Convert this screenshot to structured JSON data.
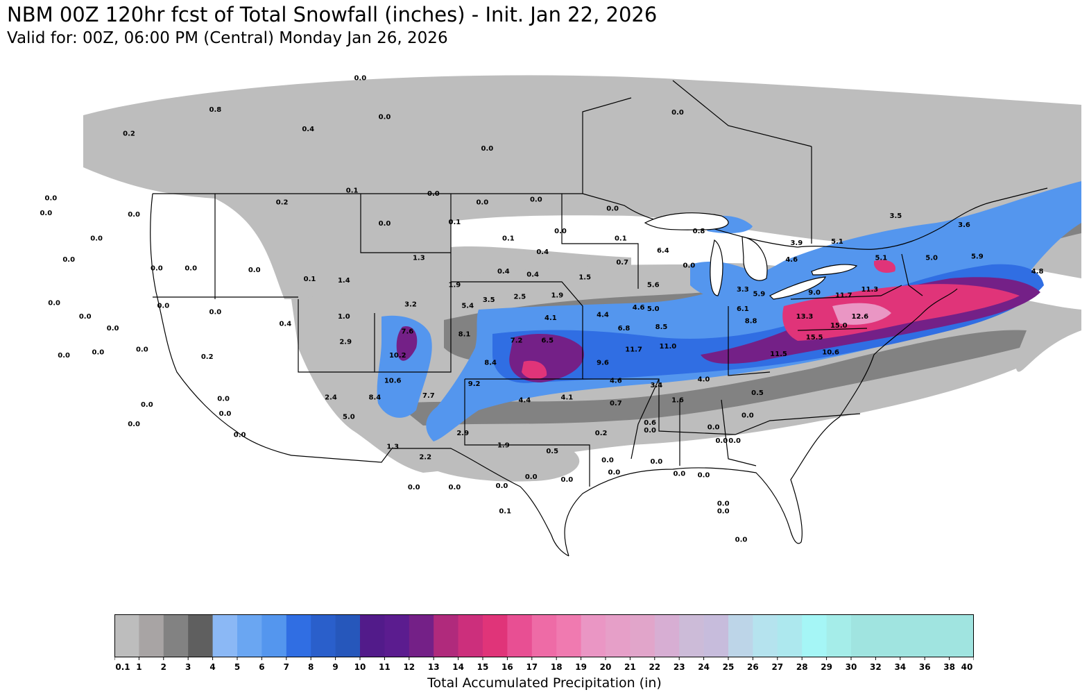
{
  "title": "NBM 00Z 120hr fcst of Total Snowfall (inches) - Init. Jan 22, 2026",
  "subtitle": "Valid for: 00Z, 06:00 PM (Central) Monday Jan 26, 2026",
  "colorbar": {
    "title": "Total Accumulated Precipitation (in)",
    "ticks": [
      "0.1",
      "1",
      "2",
      "3",
      "4",
      "5",
      "6",
      "7",
      "8",
      "9",
      "10",
      "11",
      "12",
      "13",
      "14",
      "15",
      "16",
      "17",
      "18",
      "19",
      "20",
      "21",
      "22",
      "23",
      "24",
      "25",
      "26",
      "27",
      "28",
      "29",
      "30",
      "32",
      "34",
      "36",
      "38",
      "40"
    ],
    "colors": [
      "#bdbdbd",
      "#a8a4a4",
      "#828282",
      "#5f5f5f",
      "#8bb8f5",
      "#6aa6f2",
      "#5496ee",
      "#306ee3",
      "#2a5fcb",
      "#2657bb",
      "#521b8a",
      "#5b1c8f",
      "#742087",
      "#b02a7c",
      "#cc2f7c",
      "#e03479",
      "#e84f93",
      "#ee6ba6",
      "#f07ab0",
      "#ea96c4",
      "#e69fc8",
      "#e1a5ca",
      "#d7aed3",
      "#ccbbd8",
      "#c7bcdc",
      "#bdd5e8",
      "#b5e3ee",
      "#ade8ee",
      "#a5f6f6",
      "#a5ede9",
      "#a0e4e0",
      "#a0e4e0",
      "#a0e4e0",
      "#a0e4e0",
      "#a0e4e0"
    ]
  },
  "map_labels": [
    {
      "t": "0.0",
      "x": -123.3,
      "y": 48.9
    },
    {
      "t": "0.2",
      "x": -118.5,
      "y": 53.2
    },
    {
      "t": "0.8",
      "x": -113.2,
      "y": 54.8
    },
    {
      "t": "0.0",
      "x": -104.3,
      "y": 56.9
    },
    {
      "t": "0.4",
      "x": -107.5,
      "y": 53.5
    },
    {
      "t": "0.0",
      "x": -102.8,
      "y": 54.3
    },
    {
      "t": "0.0",
      "x": -96.5,
      "y": 52.2
    },
    {
      "t": "0.0",
      "x": -84.8,
      "y": 54.6
    },
    {
      "t": "0.0",
      "x": -123.6,
      "y": 47.9
    },
    {
      "t": "0.0",
      "x": -118.2,
      "y": 47.8
    },
    {
      "t": "0.0",
      "x": -120.5,
      "y": 46.2
    },
    {
      "t": "0.1",
      "x": -104.8,
      "y": 49.4
    },
    {
      "t": "0.2",
      "x": -109.1,
      "y": 48.6
    },
    {
      "t": "0.0",
      "x": -99.8,
      "y": 49.2
    },
    {
      "t": "0.0",
      "x": -96.8,
      "y": 48.6
    },
    {
      "t": "0.0",
      "x": -102.8,
      "y": 47.2
    },
    {
      "t": "0.1",
      "x": -98.5,
      "y": 47.3
    },
    {
      "t": "0.0",
      "x": -93.5,
      "y": 48.8
    },
    {
      "t": "0.0",
      "x": -92.0,
      "y": 46.7
    },
    {
      "t": "0.1",
      "x": -95.2,
      "y": 46.2
    },
    {
      "t": "0.4",
      "x": -93.1,
      "y": 45.3
    },
    {
      "t": "0.0",
      "x": -88.8,
      "y": 48.2
    },
    {
      "t": "0.1",
      "x": -88.3,
      "y": 46.2
    },
    {
      "t": "0.8",
      "x": -83.5,
      "y": 46.7
    },
    {
      "t": "0.0",
      "x": -122.2,
      "y": 44.8
    },
    {
      "t": "0.0",
      "x": -116.8,
      "y": 44.2
    },
    {
      "t": "0.0",
      "x": -114.7,
      "y": 44.2
    },
    {
      "t": "0.0",
      "x": -110.8,
      "y": 44.1
    },
    {
      "t": "0.1",
      "x": -107.4,
      "y": 43.5
    },
    {
      "t": "1.4",
      "x": -105.3,
      "y": 43.4
    },
    {
      "t": "1.3",
      "x": -100.7,
      "y": 44.9
    },
    {
      "t": "1.9",
      "x": -98.5,
      "y": 43.1
    },
    {
      "t": "0.4",
      "x": -95.5,
      "y": 44.0
    },
    {
      "t": "0.4",
      "x": -93.7,
      "y": 43.8
    },
    {
      "t": "1.5",
      "x": -90.5,
      "y": 43.6
    },
    {
      "t": "0.7",
      "x": -88.2,
      "y": 44.6
    },
    {
      "t": "6.4",
      "x": -85.7,
      "y": 45.4
    },
    {
      "t": "5.6",
      "x": -86.3,
      "y": 43.1
    },
    {
      "t": "4.6",
      "x": -87.2,
      "y": 41.6
    },
    {
      "t": "0.0",
      "x": -123.1,
      "y": 41.9
    },
    {
      "t": "0.0",
      "x": -121.2,
      "y": 41.0
    },
    {
      "t": "0.0",
      "x": -116.4,
      "y": 41.7
    },
    {
      "t": "0.0",
      "x": -113.2,
      "y": 41.3
    },
    {
      "t": "0.0",
      "x": -119.5,
      "y": 40.2
    },
    {
      "t": "0.0",
      "x": -117.7,
      "y": 38.8
    },
    {
      "t": "0.0",
      "x": -120.4,
      "y": 38.6
    },
    {
      "t": "0.0",
      "x": -122.5,
      "y": 38.4
    },
    {
      "t": "0.2",
      "x": -113.7,
      "y": 38.3
    },
    {
      "t": "0.4",
      "x": -108.9,
      "y": 40.5
    },
    {
      "t": "2.9",
      "x": -105.2,
      "y": 39.3
    },
    {
      "t": "1.0",
      "x": -105.3,
      "y": 41.0
    },
    {
      "t": "3.2",
      "x": -101.2,
      "y": 41.8
    },
    {
      "t": "5.4",
      "x": -97.7,
      "y": 41.7
    },
    {
      "t": "3.5",
      "x": -96.4,
      "y": 42.1
    },
    {
      "t": "2.5",
      "x": -94.5,
      "y": 42.3
    },
    {
      "t": "1.9",
      "x": -92.2,
      "y": 42.4
    },
    {
      "t": "4.1",
      "x": -92.6,
      "y": 40.9
    },
    {
      "t": "4.4",
      "x": -89.4,
      "y": 41.1
    },
    {
      "t": "6.8",
      "x": -88.1,
      "y": 40.2
    },
    {
      "t": "5.0",
      "x": -86.3,
      "y": 41.5
    },
    {
      "t": "8.5",
      "x": -85.8,
      "y": 40.3
    },
    {
      "t": "7.6",
      "x": -101.4,
      "y": 40.0
    },
    {
      "t": "8.1",
      "x": -97.9,
      "y": 39.8
    },
    {
      "t": "7.2",
      "x": -94.7,
      "y": 39.4
    },
    {
      "t": "6.5",
      "x": -92.8,
      "y": 39.4
    },
    {
      "t": "10.2",
      "x": -102.0,
      "y": 38.4
    },
    {
      "t": "8.4",
      "x": -96.3,
      "y": 37.9
    },
    {
      "t": "11.7",
      "x": -87.5,
      "y": 38.8
    },
    {
      "t": "11.0",
      "x": -85.4,
      "y": 39.0
    },
    {
      "t": "9.6",
      "x": -89.4,
      "y": 37.9
    },
    {
      "t": "10.6",
      "x": -102.3,
      "y": 36.7
    },
    {
      "t": "9.2",
      "x": -97.3,
      "y": 36.5
    },
    {
      "t": "4.6",
      "x": -88.6,
      "y": 36.7
    },
    {
      "t": "3.4",
      "x": -86.1,
      "y": 36.4
    },
    {
      "t": "4.0",
      "x": -83.2,
      "y": 36.8
    },
    {
      "t": "8.4",
      "x": -103.4,
      "y": 35.6
    },
    {
      "t": "7.7",
      "x": -100.1,
      "y": 35.7
    },
    {
      "t": "4.4",
      "x": -94.2,
      "y": 35.4
    },
    {
      "t": "4.1",
      "x": -91.6,
      "y": 35.6
    },
    {
      "t": "0.7",
      "x": -88.6,
      "y": 35.2
    },
    {
      "t": "1.6",
      "x": -84.8,
      "y": 35.4
    },
    {
      "t": "0.5",
      "x": -79.9,
      "y": 35.9
    },
    {
      "t": "2.4",
      "x": -106.1,
      "y": 35.6
    },
    {
      "t": "5.0",
      "x": -105.0,
      "y": 34.3
    },
    {
      "t": "0.0",
      "x": -112.7,
      "y": 35.5
    },
    {
      "t": "0.0",
      "x": -112.6,
      "y": 34.5
    },
    {
      "t": "0.0",
      "x": -111.7,
      "y": 33.1
    },
    {
      "t": "0.0",
      "x": -117.4,
      "y": 35.1
    },
    {
      "t": "0.0",
      "x": -118.2,
      "y": 33.8
    },
    {
      "t": "2.9",
      "x": -98.0,
      "y": 33.2
    },
    {
      "t": "1.9",
      "x": -95.5,
      "y": 32.4
    },
    {
      "t": "0.5",
      "x": -92.5,
      "y": 32.0
    },
    {
      "t": "0.2",
      "x": -89.5,
      "y": 33.2
    },
    {
      "t": "0.6",
      "x": -86.5,
      "y": 33.9
    },
    {
      "t": "0.0",
      "x": -86.5,
      "y": 33.4
    },
    {
      "t": "0.0",
      "x": -82.6,
      "y": 33.6
    },
    {
      "t": "0.0",
      "x": -81.3,
      "y": 32.7
    },
    {
      "t": "1.3",
      "x": -102.3,
      "y": 32.3
    },
    {
      "t": "2.2",
      "x": -100.3,
      "y": 31.6
    },
    {
      "t": "0.0",
      "x": -89.1,
      "y": 31.4
    },
    {
      "t": "0.0",
      "x": -86.1,
      "y": 31.3
    },
    {
      "t": "0.0",
      "x": -101.0,
      "y": 29.6
    },
    {
      "t": "0.0",
      "x": -98.5,
      "y": 29.6
    },
    {
      "t": "0.0",
      "x": -95.6,
      "y": 29.7
    },
    {
      "t": "0.0",
      "x": -93.8,
      "y": 30.3
    },
    {
      "t": "0.0",
      "x": -91.6,
      "y": 30.1
    },
    {
      "t": "0.0",
      "x": -88.7,
      "y": 30.6
    },
    {
      "t": "0.0",
      "x": -84.7,
      "y": 30.5
    },
    {
      "t": "0.0",
      "x": -83.2,
      "y": 30.4
    },
    {
      "t": "0.0",
      "x": -82.0,
      "y": 28.5
    },
    {
      "t": "0.0",
      "x": -82.0,
      "y": 28.0
    },
    {
      "t": "0.0",
      "x": -80.9,
      "y": 26.1
    },
    {
      "t": "0.1",
      "x": -95.4,
      "y": 28.0
    },
    {
      "t": "0.0",
      "x": -84.1,
      "y": 44.4
    },
    {
      "t": "3.3",
      "x": -80.8,
      "y": 42.8
    },
    {
      "t": "5.9",
      "x": -79.8,
      "y": 42.5
    },
    {
      "t": "4.6",
      "x": -77.8,
      "y": 44.8
    },
    {
      "t": "6.1",
      "x": -80.8,
      "y": 41.5
    },
    {
      "t": "8.8",
      "x": -80.3,
      "y": 40.7
    },
    {
      "t": "13.3",
      "x": -77.0,
      "y": 41.0
    },
    {
      "t": "9.0",
      "x": -76.4,
      "y": 42.6
    },
    {
      "t": "11.7",
      "x": -74.6,
      "y": 42.4
    },
    {
      "t": "11.3",
      "x": -73.0,
      "y": 42.8
    },
    {
      "t": "12.6",
      "x": -73.6,
      "y": 41.0
    },
    {
      "t": "15.0",
      "x": -74.9,
      "y": 40.4
    },
    {
      "t": "15.5",
      "x": -76.4,
      "y": 39.6
    },
    {
      "t": "11.5",
      "x": -78.6,
      "y": 38.5
    },
    {
      "t": "10.6",
      "x": -75.4,
      "y": 38.6
    },
    {
      "t": "3.9",
      "x": -77.5,
      "y": 45.9
    },
    {
      "t": "5.1",
      "x": -75.0,
      "y": 46.0
    },
    {
      "t": "5.1",
      "x": -72.3,
      "y": 44.9
    },
    {
      "t": "3.5",
      "x": -71.4,
      "y": 47.7
    },
    {
      "t": "3.6",
      "x": -67.2,
      "y": 47.1
    },
    {
      "t": "5.0",
      "x": -69.2,
      "y": 44.9
    },
    {
      "t": "5.9",
      "x": -66.4,
      "y": 45.0
    },
    {
      "t": "4.8",
      "x": -62.7,
      "y": 44.0
    },
    {
      "t": "0.0",
      "x": -80.5,
      "y": 34.4
    },
    {
      "t": "0.0",
      "x": -82.1,
      "y": 32.7
    }
  ]
}
